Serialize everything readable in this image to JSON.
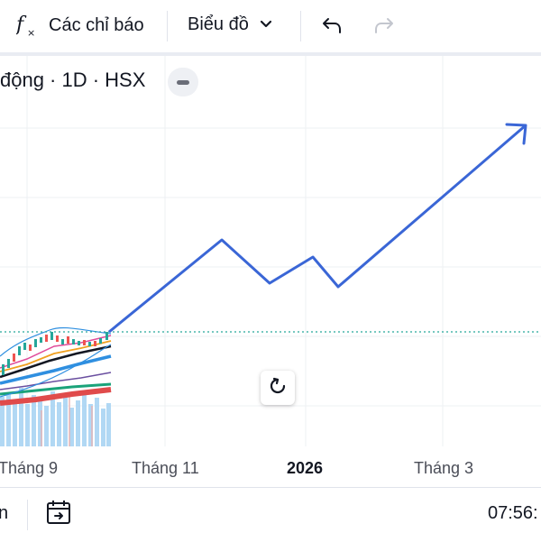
{
  "toolbar": {
    "indicators_label": "Các chỉ báo",
    "chart_label": "Biểu đồ"
  },
  "legend": {
    "title": "động · 1D · HSX"
  },
  "xaxis": {
    "labels": [
      "Tháng 9",
      "Tháng 11",
      "2026",
      "Tháng 3"
    ]
  },
  "bottom": {
    "left_text": "n",
    "time": "07:56:"
  },
  "colors": {
    "forecast_line": "#3a66d6",
    "price_level_dots": "#26a69a",
    "ma_black": "#131722",
    "ma_blue": "#2f8fe0",
    "ma_green": "#1aa37a",
    "ma_red": "#e04b4b",
    "volume": "#a9d4f3"
  },
  "icons": {
    "fx": "fx-icon",
    "chevron": "chevron-down-icon",
    "undo": "undo-icon",
    "redo": "redo-icon",
    "reset": "reset-icon",
    "date_range": "date-range-icon"
  }
}
